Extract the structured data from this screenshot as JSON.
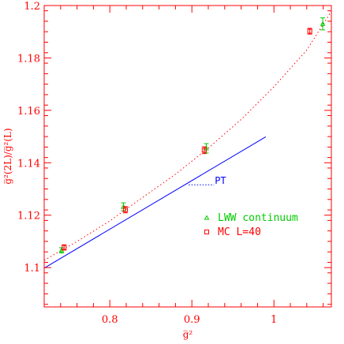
{
  "chart_data": {
    "type": "scatter",
    "title": "",
    "xlabel": "g̅²",
    "ylabel": "g̅²(2L)/g̅²(L)",
    "xlim": [
      0.72,
      1.07
    ],
    "ylim": [
      1.085,
      1.2
    ],
    "xticks": [
      0.8,
      0.9,
      1.0
    ],
    "xtick_labels": [
      "0.8",
      "0.9",
      "1"
    ],
    "yticks": [
      1.1,
      1.12,
      1.14,
      1.16,
      1.18,
      1.2
    ],
    "ytick_labels": [
      "1.1",
      "1.12",
      "1.14",
      "1.16",
      "1.18",
      "1.2"
    ],
    "grid": false,
    "legend_position": "lower-right",
    "series": [
      {
        "name": "LWW continuum",
        "kind": "points",
        "marker": "triangle",
        "color": "#00cc00",
        "points": [
          {
            "x": 0.7411,
            "y": 1.1066,
            "err": 0.001
          },
          {
            "x": 0.8166,
            "y": 1.1232,
            "err": 0.0015
          },
          {
            "x": 0.9176,
            "y": 1.1455,
            "err": 0.0018
          },
          {
            "x": 1.0595,
            "y": 1.193,
            "err": 0.0023
          }
        ]
      },
      {
        "name": "MC L=40",
        "kind": "points",
        "marker": "square",
        "color": "#ff0000",
        "points": [
          {
            "x": 0.7443,
            "y": 1.1077,
            "err": 0.001
          },
          {
            "x": 0.819,
            "y": 1.1221,
            "err": 0.0012
          },
          {
            "x": 0.915,
            "y": 1.1448,
            "err": 0.0013
          },
          {
            "x": 1.0437,
            "y": 1.1902,
            "err": 0.0011
          }
        ]
      },
      {
        "name": "",
        "kind": "line",
        "style": "dotted",
        "color": "#ff0000",
        "x": [
          0.72,
          0.76,
          0.8,
          0.84,
          0.88,
          0.92,
          0.96,
          1.0,
          1.04,
          1.07
        ],
        "y": [
          1.1028,
          1.11,
          1.1178,
          1.1268,
          1.1356,
          1.1456,
          1.1565,
          1.169,
          1.183,
          1.1978
        ]
      },
      {
        "name": "PT",
        "kind": "line",
        "style": "solid",
        "color": "#0000ff",
        "x": [
          0.72,
          0.99
        ],
        "y": [
          1.0998,
          1.1499
        ]
      }
    ],
    "annotations": [
      {
        "text": "PT",
        "color": "#0000ff"
      }
    ]
  }
}
